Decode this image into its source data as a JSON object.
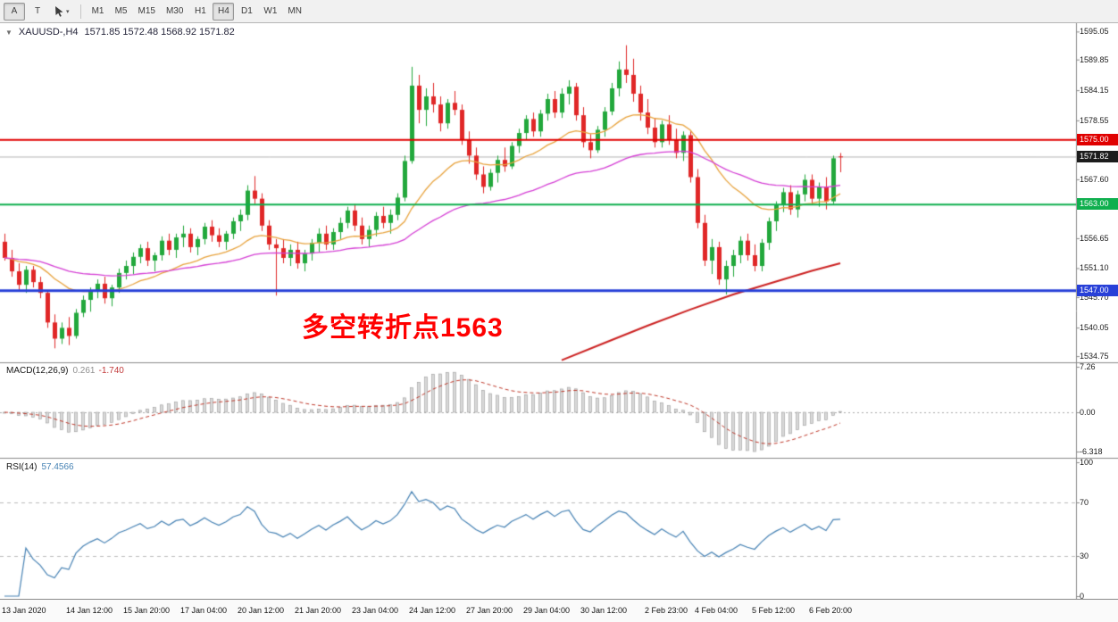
{
  "toolbar": {
    "buttons": [
      {
        "label": "A",
        "active": true
      },
      {
        "label": "T",
        "active": false
      }
    ],
    "caret_down": "▾",
    "timeframes": [
      "M1",
      "M5",
      "M15",
      "M30",
      "H1",
      "H4",
      "D1",
      "W1",
      "MN"
    ],
    "active_timeframe": "H4"
  },
  "chart": {
    "collapse_icon": "▼",
    "title": {
      "symbol": "XAUUSD-,H4",
      "ohlc": "1571.85 1572.48 1568.92 1571.82"
    },
    "annotation": {
      "text": "多空转折点1563",
      "color": "#ff0000"
    },
    "price_axis_labels": [
      "1595.05",
      "1589.85",
      "1584.15",
      "1578.55",
      "1567.60",
      "1556.65",
      "1551.10",
      "1545.70",
      "1540.05",
      "1534.75"
    ],
    "price_badges": [
      {
        "text": "1575.00",
        "price": 1575.0,
        "bg": "#e00000"
      },
      {
        "text": "1571.82",
        "price": 1571.82,
        "bg": "#1c1c1c"
      },
      {
        "text": "1563.00",
        "price": 1563.0,
        "bg": "#0faf4e"
      },
      {
        "text": "1547.00",
        "price": 1547.0,
        "bg": "#2840d8"
      }
    ],
    "time_axis_labels": [
      {
        "text": "13 Jan 2020",
        "bar": 0
      },
      {
        "text": "14 Jan 12:00",
        "bar": 9
      },
      {
        "text": "15 Jan 20:00",
        "bar": 17
      },
      {
        "text": "17 Jan 04:00",
        "bar": 25
      },
      {
        "text": "20 Jan 12:00",
        "bar": 33
      },
      {
        "text": "21 Jan 20:00",
        "bar": 41
      },
      {
        "text": "23 Jan 04:00",
        "bar": 49
      },
      {
        "text": "24 Jan 12:00",
        "bar": 57
      },
      {
        "text": "27 Jan 20:00",
        "bar": 65
      },
      {
        "text": "29 Jan 04:00",
        "bar": 73
      },
      {
        "text": "30 Jan 12:00",
        "bar": 81
      },
      {
        "text": "2 Feb 23:00",
        "bar": 90
      },
      {
        "text": "4 Feb 04:00",
        "bar": 97
      },
      {
        "text": "5 Feb 12:00",
        "bar": 105
      },
      {
        "text": "6 Feb 20:00",
        "bar": 113
      }
    ]
  },
  "macd_panel": {
    "name": "MACD(12,26,9)",
    "main_value": "0.261",
    "signal_value": "-1.740",
    "axis_labels": [
      "7.26",
      "0.00",
      "-6.318"
    ]
  },
  "rsi_panel": {
    "name": "RSI(14)",
    "value": "57.4566",
    "axis_labels": [
      "100",
      "70",
      "30",
      "0"
    ]
  },
  "chart_data": {
    "type": "candlestick",
    "symbol": "XAUUSD-",
    "timeframe": "H4",
    "title": "XAUUSD-,H4 1571.85 1572.48 1568.92 1571.82",
    "last_ohlc": {
      "open": 1571.85,
      "high": 1572.48,
      "low": 1568.92,
      "close": 1571.82
    },
    "current_price": 1571.82,
    "ylim_main": [
      1533.6,
      1596.6
    ],
    "up_color": "#22a83c",
    "down_color": "#e02727",
    "candles": [
      [
        1556.0,
        1557.5,
        1552.5,
        1553.0
      ],
      [
        1553.0,
        1554.5,
        1549.5,
        1550.5
      ],
      [
        1550.5,
        1552.0,
        1547.0,
        1548.0
      ],
      [
        1548.0,
        1551.5,
        1546.5,
        1550.8
      ],
      [
        1550.8,
        1551.5,
        1547.5,
        1548.5
      ],
      [
        1548.5,
        1549.5,
        1545.5,
        1546.5
      ],
      [
        1546.5,
        1547.0,
        1540.0,
        1541.0
      ],
      [
        1541.0,
        1542.5,
        1536.2,
        1538.0
      ],
      [
        1538.0,
        1541.0,
        1537.0,
        1540.0
      ],
      [
        1540.0,
        1542.0,
        1536.8,
        1538.5
      ],
      [
        1538.5,
        1543.5,
        1538.0,
        1542.8
      ],
      [
        1542.8,
        1546.0,
        1542.0,
        1545.2
      ],
      [
        1545.2,
        1547.5,
        1543.0,
        1546.8
      ],
      [
        1546.8,
        1549.0,
        1545.5,
        1548.2
      ],
      [
        1548.2,
        1549.5,
        1544.5,
        1545.5
      ],
      [
        1545.5,
        1548.0,
        1544.0,
        1547.5
      ],
      [
        1547.5,
        1551.0,
        1546.5,
        1550.2
      ],
      [
        1550.2,
        1552.5,
        1549.0,
        1551.5
      ],
      [
        1551.5,
        1554.0,
        1550.0,
        1553.2
      ],
      [
        1553.2,
        1555.5,
        1552.0,
        1554.8
      ],
      [
        1554.8,
        1556.0,
        1551.5,
        1552.5
      ],
      [
        1552.5,
        1554.0,
        1550.5,
        1553.5
      ],
      [
        1553.5,
        1557.0,
        1552.5,
        1556.2
      ],
      [
        1556.2,
        1557.5,
        1553.5,
        1554.5
      ],
      [
        1554.5,
        1557.5,
        1553.0,
        1556.8
      ],
      [
        1556.8,
        1559.0,
        1555.0,
        1557.5
      ],
      [
        1557.5,
        1558.5,
        1554.0,
        1555.0
      ],
      [
        1555.0,
        1557.0,
        1553.5,
        1556.5
      ],
      [
        1556.5,
        1559.5,
        1555.5,
        1558.8
      ],
      [
        1558.8,
        1560.0,
        1556.0,
        1557.2
      ],
      [
        1557.2,
        1558.5,
        1555.0,
        1556.0
      ],
      [
        1556.0,
        1558.0,
        1554.5,
        1557.5
      ],
      [
        1557.5,
        1560.5,
        1556.5,
        1559.8
      ],
      [
        1559.8,
        1562.0,
        1558.0,
        1561.0
      ],
      [
        1561.0,
        1566.5,
        1560.0,
        1565.5
      ],
      [
        1565.5,
        1568.2,
        1563.0,
        1564.0
      ],
      [
        1564.0,
        1565.0,
        1558.0,
        1559.0
      ],
      [
        1559.0,
        1560.0,
        1554.5,
        1555.5
      ],
      [
        1555.5,
        1556.5,
        1546.0,
        1554.8
      ],
      [
        1554.8,
        1556.5,
        1552.0,
        1553.0
      ],
      [
        1553.0,
        1555.5,
        1551.5,
        1554.5
      ],
      [
        1554.5,
        1556.0,
        1551.0,
        1552.0
      ],
      [
        1552.0,
        1554.5,
        1550.5,
        1553.8
      ],
      [
        1553.8,
        1556.5,
        1552.5,
        1555.8
      ],
      [
        1555.8,
        1558.5,
        1554.0,
        1557.5
      ],
      [
        1557.5,
        1559.0,
        1554.5,
        1555.5
      ],
      [
        1555.5,
        1558.5,
        1554.5,
        1557.8
      ],
      [
        1557.8,
        1560.5,
        1556.5,
        1559.5
      ],
      [
        1559.5,
        1562.5,
        1558.5,
        1561.8
      ],
      [
        1561.8,
        1563.0,
        1558.0,
        1559.0
      ],
      [
        1559.0,
        1560.5,
        1555.5,
        1556.5
      ],
      [
        1556.5,
        1559.0,
        1555.0,
        1558.2
      ],
      [
        1558.2,
        1561.5,
        1557.0,
        1560.8
      ],
      [
        1560.8,
        1562.5,
        1558.5,
        1559.5
      ],
      [
        1559.5,
        1562.0,
        1557.5,
        1561.0
      ],
      [
        1561.0,
        1565.0,
        1560.0,
        1564.2
      ],
      [
        1564.2,
        1572.0,
        1563.5,
        1571.0
      ],
      [
        1571.0,
        1588.5,
        1570.5,
        1585.0
      ],
      [
        1585.0,
        1587.0,
        1578.0,
        1580.5
      ],
      [
        1580.5,
        1584.5,
        1577.5,
        1583.0
      ],
      [
        1583.0,
        1585.5,
        1580.0,
        1581.5
      ],
      [
        1581.5,
        1583.0,
        1576.5,
        1578.0
      ],
      [
        1578.0,
        1582.5,
        1577.0,
        1581.8
      ],
      [
        1581.8,
        1584.0,
        1579.5,
        1580.5
      ],
      [
        1580.5,
        1581.5,
        1574.0,
        1575.0
      ],
      [
        1575.0,
        1576.5,
        1570.5,
        1572.0
      ],
      [
        1572.0,
        1573.5,
        1567.5,
        1568.5
      ],
      [
        1568.5,
        1570.0,
        1565.0,
        1566.2
      ],
      [
        1566.2,
        1569.5,
        1565.5,
        1568.8
      ],
      [
        1568.8,
        1572.0,
        1567.0,
        1571.2
      ],
      [
        1571.2,
        1573.5,
        1569.0,
        1570.0
      ],
      [
        1570.0,
        1574.5,
        1569.5,
        1573.8
      ],
      [
        1573.8,
        1577.0,
        1572.5,
        1576.2
      ],
      [
        1576.2,
        1579.5,
        1575.0,
        1578.8
      ],
      [
        1578.8,
        1580.0,
        1575.5,
        1576.5
      ],
      [
        1576.5,
        1580.5,
        1575.5,
        1579.8
      ],
      [
        1579.8,
        1583.5,
        1578.5,
        1582.5
      ],
      [
        1582.5,
        1584.0,
        1579.0,
        1580.0
      ],
      [
        1580.0,
        1584.5,
        1579.0,
        1583.5
      ],
      [
        1583.5,
        1586.0,
        1581.5,
        1584.8
      ],
      [
        1584.8,
        1585.5,
        1578.5,
        1579.5
      ],
      [
        1579.5,
        1581.0,
        1573.5,
        1574.5
      ],
      [
        1574.5,
        1576.0,
        1571.5,
        1573.0
      ],
      [
        1573.0,
        1577.5,
        1572.5,
        1576.8
      ],
      [
        1576.8,
        1581.0,
        1575.5,
        1580.2
      ],
      [
        1580.2,
        1585.5,
        1579.5,
        1584.5
      ],
      [
        1584.5,
        1589.5,
        1583.0,
        1588.0
      ],
      [
        1588.0,
        1592.5,
        1585.5,
        1587.0
      ],
      [
        1587.0,
        1590.0,
        1582.0,
        1583.5
      ],
      [
        1583.5,
        1585.0,
        1578.5,
        1580.0
      ],
      [
        1580.0,
        1582.5,
        1576.0,
        1577.2
      ],
      [
        1577.2,
        1579.0,
        1573.5,
        1574.5
      ],
      [
        1574.5,
        1578.5,
        1573.5,
        1577.8
      ],
      [
        1577.8,
        1579.5,
        1574.0,
        1575.0
      ],
      [
        1575.0,
        1577.0,
        1571.5,
        1572.5
      ],
      [
        1572.5,
        1576.5,
        1571.0,
        1575.8
      ],
      [
        1575.8,
        1576.5,
        1567.0,
        1568.0
      ],
      [
        1568.0,
        1569.5,
        1558.5,
        1559.5
      ],
      [
        1559.5,
        1561.0,
        1551.5,
        1552.5
      ],
      [
        1552.5,
        1556.5,
        1550.0,
        1555.0
      ],
      [
        1555.0,
        1556.0,
        1548.0,
        1549.0
      ],
      [
        1549.0,
        1552.5,
        1546.2,
        1551.5
      ],
      [
        1551.5,
        1554.5,
        1549.5,
        1553.5
      ],
      [
        1553.5,
        1557.0,
        1552.0,
        1556.2
      ],
      [
        1556.2,
        1557.5,
        1552.5,
        1553.5
      ],
      [
        1553.5,
        1555.5,
        1550.5,
        1551.5
      ],
      [
        1551.5,
        1556.5,
        1550.5,
        1555.8
      ],
      [
        1555.8,
        1560.5,
        1554.5,
        1559.8
      ],
      [
        1559.8,
        1563.5,
        1558.0,
        1562.8
      ],
      [
        1562.8,
        1566.0,
        1561.5,
        1565.2
      ],
      [
        1565.2,
        1566.5,
        1561.0,
        1562.0
      ],
      [
        1562.0,
        1565.5,
        1560.5,
        1564.8
      ],
      [
        1564.8,
        1568.5,
        1563.5,
        1567.5
      ],
      [
        1567.5,
        1568.5,
        1563.0,
        1564.0
      ],
      [
        1564.0,
        1567.0,
        1562.5,
        1566.2
      ],
      [
        1566.2,
        1568.0,
        1562.0,
        1563.5
      ],
      [
        1563.5,
        1572.0,
        1563.0,
        1571.5
      ],
      [
        1571.85,
        1572.48,
        1568.92,
        1571.82
      ]
    ],
    "hlines": [
      {
        "price": 1575.0,
        "color": "#e00000",
        "width": 2,
        "label": "1575.00"
      },
      {
        "price": 1563.0,
        "color": "#0faf4e",
        "width": 2,
        "label": "1563.00"
      },
      {
        "price": 1547.0,
        "color": "#2840d8",
        "width": 3,
        "label": "1547.00"
      }
    ],
    "moving_averages": {
      "fast": {
        "color": "#e8a33d",
        "period": 20
      },
      "slow": {
        "color": "#d53fd5",
        "period": 55
      },
      "long": {
        "color": "#cc2222",
        "points": [
          [
            78,
            1534.0
          ],
          [
            84,
            1537.2
          ],
          [
            90,
            1540.4
          ],
          [
            96,
            1543.4
          ],
          [
            102,
            1546.2
          ],
          [
            108,
            1548.6
          ],
          [
            113,
            1550.6
          ],
          [
            117,
            1552.0
          ]
        ]
      }
    },
    "macd": {
      "params": [
        12,
        26,
        9
      ],
      "main": 0.261,
      "signal": -1.74,
      "axis_max": 7.26,
      "axis_min": -6.318,
      "hist_fill": "#d9d9d9",
      "hist_stroke": "#9b9b9b",
      "signal_color": "#c0392b"
    },
    "rsi": {
      "period": 14,
      "value": 57.4566,
      "levels": [
        70,
        30
      ],
      "line_color": "#4682b4"
    }
  }
}
